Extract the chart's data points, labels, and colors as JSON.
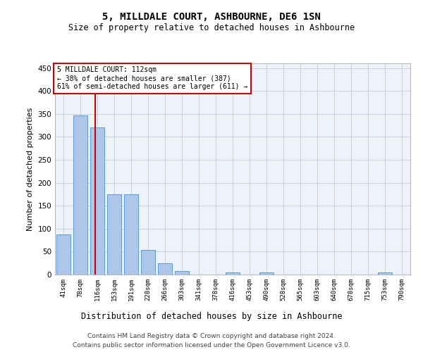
{
  "title": "5, MILLDALE COURT, ASHBOURNE, DE6 1SN",
  "subtitle": "Size of property relative to detached houses in Ashbourne",
  "xlabel": "Distribution of detached houses by size in Ashbourne",
  "ylabel": "Number of detached properties",
  "bar_color": "#aec6e8",
  "bar_edge_color": "#5a9bd4",
  "background_color": "#eef2fa",
  "grid_color": "#c8cfe0",
  "categories": [
    "41sqm",
    "78sqm",
    "116sqm",
    "153sqm",
    "191sqm",
    "228sqm",
    "266sqm",
    "303sqm",
    "341sqm",
    "378sqm",
    "416sqm",
    "453sqm",
    "490sqm",
    "528sqm",
    "565sqm",
    "603sqm",
    "640sqm",
    "678sqm",
    "715sqm",
    "753sqm",
    "790sqm"
  ],
  "values": [
    88,
    347,
    321,
    175,
    175,
    53,
    25,
    8,
    0,
    0,
    4,
    0,
    5,
    0,
    0,
    0,
    0,
    0,
    0,
    5,
    0
  ],
  "ylim": [
    0,
    460
  ],
  "yticks": [
    0,
    50,
    100,
    150,
    200,
    250,
    300,
    350,
    400,
    450
  ],
  "vline_x": 1.88,
  "annotation_text": "5 MILLDALE COURT: 112sqm\n← 38% of detached houses are smaller (387)\n61% of semi-detached houses are larger (611) →",
  "annotation_box_color": "#ffffff",
  "annotation_box_edge": "#cc0000",
  "vline_color": "#cc0000",
  "footer_line1": "Contains HM Land Registry data © Crown copyright and database right 2024.",
  "footer_line2": "Contains public sector information licensed under the Open Government Licence v3.0."
}
